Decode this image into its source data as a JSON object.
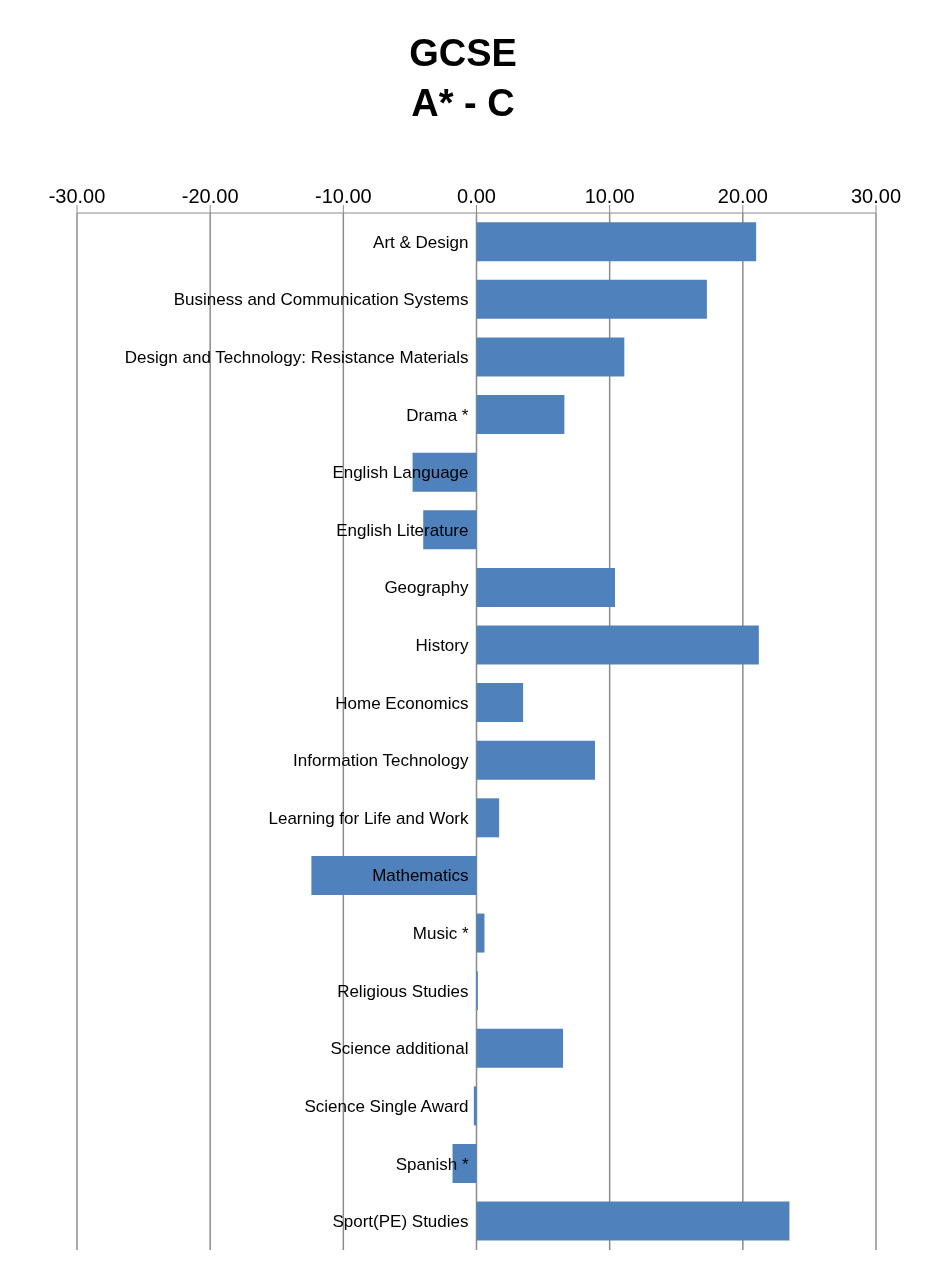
{
  "chart_data": {
    "type": "bar",
    "orientation": "horizontal",
    "title": "GCSE\nA* - C",
    "categories": [
      "Art & Design",
      "Business and Communication Systems",
      "Design and Technology: Resistance Materials",
      "Drama *",
      "English Language",
      "English Literature",
      "Geography",
      "History",
      "Home Economics",
      "Information Technology",
      "Learning for Life and Work",
      "Mathematics",
      "Music *",
      "Religious Studies",
      "Science additional",
      "Science Single Award",
      "Spanish *",
      "Sport(PE) Studies"
    ],
    "values": [
      21.0,
      17.3,
      11.1,
      6.6,
      -4.8,
      -4.0,
      10.4,
      21.2,
      3.5,
      8.9,
      1.7,
      -12.4,
      0.6,
      0.1,
      6.5,
      -0.2,
      -1.8,
      23.5
    ],
    "color": "#4f81bd",
    "xlim": [
      -30,
      30
    ],
    "xticks": [
      {
        "value": -30,
        "label": "-30.00"
      },
      {
        "value": -20,
        "label": "-20.00"
      },
      {
        "value": -10,
        "label": "-10.00"
      },
      {
        "value": 0,
        "label": "0.00"
      },
      {
        "value": 10,
        "label": "10.00"
      },
      {
        "value": 20,
        "label": "20.00"
      },
      {
        "value": 30,
        "label": "30.00"
      }
    ],
    "grid": "x"
  }
}
